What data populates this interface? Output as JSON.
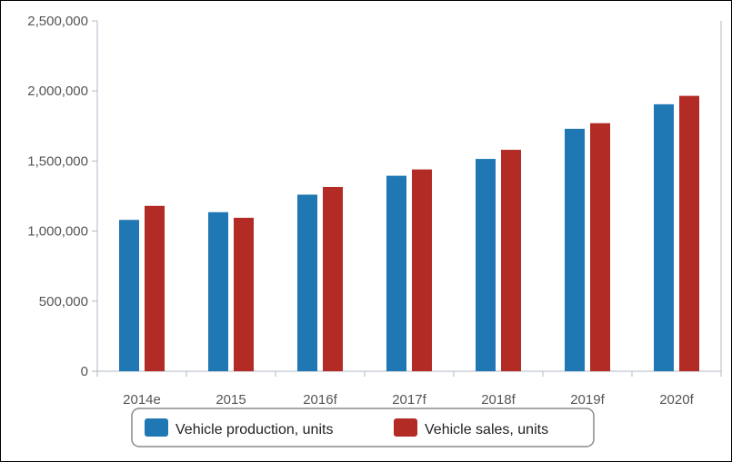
{
  "chart_data": {
    "type": "bar",
    "title": "",
    "xlabel": "",
    "ylabel": "",
    "categories": [
      "2014e",
      "2015",
      "2016f",
      "2017f",
      "2018f",
      "2019f",
      "2020f"
    ],
    "series": [
      {
        "name": "Vehicle production, units",
        "color": "#1f77b4",
        "values": [
          1080000,
          1135000,
          1260000,
          1395000,
          1515000,
          1730000,
          1905000
        ]
      },
      {
        "name": "Vehicle sales, units",
        "color": "#b22b24",
        "values": [
          1180000,
          1095000,
          1315000,
          1440000,
          1580000,
          1770000,
          1965000
        ]
      }
    ],
    "ylim": [
      0,
      2500000
    ],
    "yticks": [
      0,
      500000,
      1000000,
      1500000,
      2000000,
      2500000
    ],
    "ytick_labels": [
      "0",
      "500,000",
      "1,000,000",
      "1,500,000",
      "2,000,000",
      "2,500,000"
    ],
    "grid": false,
    "legend_position": "bottom-center"
  }
}
